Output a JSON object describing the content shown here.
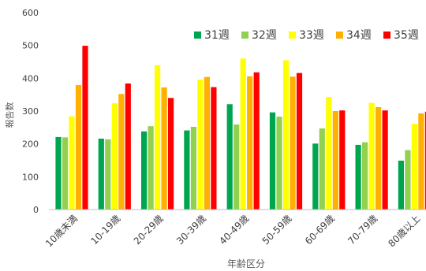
{
  "chart_data": {
    "type": "bar",
    "title_partial": "",
    "xlabel": "年齢区分",
    "ylabel": "報告数",
    "ylim": [
      0,
      600
    ],
    "yticks": [
      0,
      100,
      200,
      300,
      400,
      500,
      600
    ],
    "grid": false,
    "legend_position": "top-right",
    "categories": [
      "10歳未満",
      "10-19歳",
      "20-29歳",
      "30-39歳",
      "40-49歳",
      "50-59歳",
      "60-69歳",
      "70-79歳",
      "80歳以上"
    ],
    "series": [
      {
        "name": "31週",
        "color": "#00a550",
        "values": [
          221,
          216,
          238,
          241,
          321,
          296,
          201,
          197,
          149
        ]
      },
      {
        "name": "32週",
        "color": "#92d050",
        "values": [
          220,
          214,
          254,
          252,
          259,
          283,
          247,
          205,
          181
        ]
      },
      {
        "name": "33週",
        "color": "#ffff00",
        "values": [
          284,
          324,
          440,
          396,
          460,
          455,
          343,
          325,
          261
        ]
      },
      {
        "name": "34週",
        "color": "#ffb000",
        "values": [
          379,
          352,
          372,
          404,
          406,
          405,
          300,
          312,
          293
        ]
      },
      {
        "name": "35週",
        "color": "#ff0000",
        "values": [
          499,
          384,
          340,
          373,
          418,
          416,
          302,
          302,
          298
        ]
      }
    ]
  }
}
